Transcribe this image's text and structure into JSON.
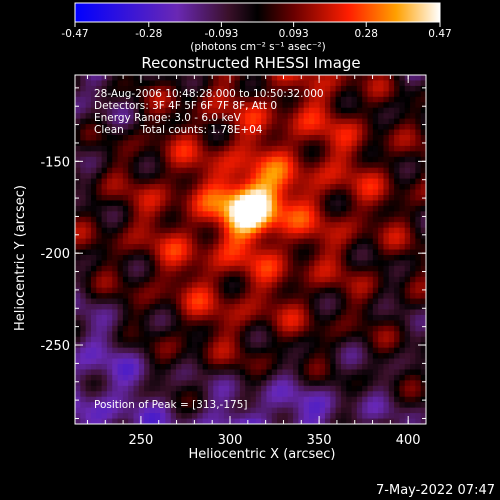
{
  "chart_data": {
    "type": "heatmap",
    "title": "Reconstructed RHESSI Image",
    "xlabel": "Heliocentric X (arcsec)",
    "ylabel": "Heliocentric Y (arcsec)",
    "xlim": [
      213,
      410
    ],
    "ylim": [
      -293,
      -103
    ],
    "xticks": [
      "250",
      "300",
      "350",
      "400"
    ],
    "yticks": [
      "-150",
      "-200",
      "-250"
    ],
    "colorbar": {
      "ticks": [
        "-0.47",
        "-0.28",
        "-0.093",
        "0.093",
        "0.28",
        "0.47"
      ],
      "range": [
        -0.47,
        0.47
      ],
      "units": "(photons cm⁻² s⁻¹ asec⁻²)"
    },
    "info_lines": [
      "28-Aug-2006 10:48:28.000 to 10:50:32.000",
      "Detectors: 3F 4F 5F 6F 7F 8F, Att 0",
      "Energy Range: 3.0 - 6.0 keV",
      "Clean     Total counts: 1.78E+04"
    ],
    "peak_label": "Position of Peak = [313,-175]",
    "peak": [
      313,
      -175
    ],
    "grid": false
  },
  "footer": {
    "timestamp": "7-May-2022 07:47"
  }
}
